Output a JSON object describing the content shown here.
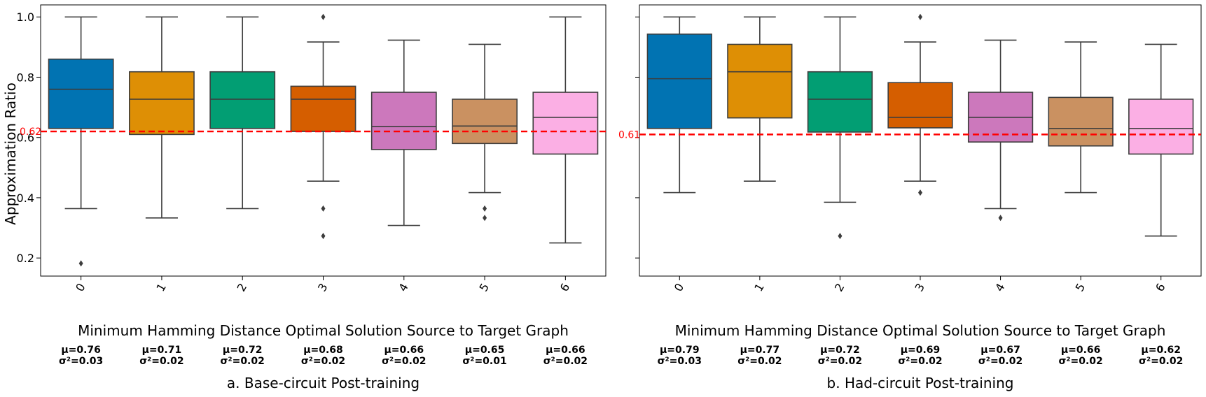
{
  "shared": {
    "ylabel": "Approximation Ratio",
    "xlabel": "Minimum Hamming Distance Optimal Solution Source to Target Graph",
    "yticks": [
      0.2,
      0.4,
      0.6,
      0.8,
      1.0
    ],
    "ytick_labels": [
      "0.2",
      "0.4",
      "0.6",
      "0.8",
      "1.0"
    ],
    "ylim": [
      0.14,
      1.04
    ],
    "palette": [
      "#0173b2",
      "#de8f05",
      "#029e73",
      "#d55e00",
      "#cc78bc",
      "#ca9161",
      "#fbafe4"
    ]
  },
  "chart_data": [
    {
      "type": "box",
      "caption": "a. Base-circuit Post-training",
      "categories": [
        "0",
        "1",
        "2",
        "3",
        "4",
        "5",
        "6"
      ],
      "reference_line": {
        "value": 0.62,
        "label": "0.62",
        "color": "#ff0000"
      },
      "boxes": [
        {
          "q1": 0.63,
          "median": 0.76,
          "q3": 0.86,
          "whislo": 0.364,
          "whishi": 1.0,
          "fliers": [
            0.182
          ]
        },
        {
          "q1": 0.61,
          "median": 0.727,
          "q3": 0.818,
          "whislo": 0.333,
          "whishi": 1.0,
          "fliers": []
        },
        {
          "q1": 0.63,
          "median": 0.727,
          "q3": 0.818,
          "whislo": 0.364,
          "whishi": 1.0,
          "fliers": []
        },
        {
          "q1": 0.62,
          "median": 0.727,
          "q3": 0.77,
          "whislo": 0.455,
          "whishi": 0.917,
          "fliers": [
            1.0,
            0.364,
            0.273
          ]
        },
        {
          "q1": 0.56,
          "median": 0.636,
          "q3": 0.75,
          "whislo": 0.308,
          "whishi": 0.923,
          "fliers": []
        },
        {
          "q1": 0.58,
          "median": 0.638,
          "q3": 0.727,
          "whislo": 0.417,
          "whishi": 0.909,
          "fliers": [
            0.364,
            0.333
          ]
        },
        {
          "q1": 0.545,
          "median": 0.667,
          "q3": 0.75,
          "whislo": 0.25,
          "whishi": 1.0,
          "fliers": []
        }
      ],
      "stats": [
        {
          "mu": "μ=0.76",
          "var": "σ²=0.03"
        },
        {
          "mu": "μ=0.71",
          "var": "σ²=0.02"
        },
        {
          "mu": "μ=0.72",
          "var": "σ²=0.02"
        },
        {
          "mu": "μ=0.68",
          "var": "σ²=0.02"
        },
        {
          "mu": "μ=0.66",
          "var": "σ²=0.02"
        },
        {
          "mu": "μ=0.65",
          "var": "σ²=0.01"
        },
        {
          "mu": "μ=0.66",
          "var": "σ²=0.02"
        }
      ],
      "show_ytick_labels": true
    },
    {
      "type": "box",
      "caption": "b. Had-circuit Post-training",
      "categories": [
        "0",
        "1",
        "2",
        "3",
        "4",
        "5",
        "6"
      ],
      "reference_line": {
        "value": 0.61,
        "label": "0.61",
        "color": "#ff0000"
      },
      "boxes": [
        {
          "q1": 0.63,
          "median": 0.795,
          "q3": 0.943,
          "whislo": 0.417,
          "whishi": 1.0,
          "fliers": []
        },
        {
          "q1": 0.665,
          "median": 0.818,
          "q3": 0.909,
          "whislo": 0.455,
          "whishi": 1.0,
          "fliers": []
        },
        {
          "q1": 0.618,
          "median": 0.727,
          "q3": 0.818,
          "whislo": 0.385,
          "whishi": 1.0,
          "fliers": [
            0.273
          ]
        },
        {
          "q1": 0.632,
          "median": 0.667,
          "q3": 0.782,
          "whislo": 0.455,
          "whishi": 0.917,
          "fliers": [
            1.0,
            0.417
          ]
        },
        {
          "q1": 0.585,
          "median": 0.667,
          "q3": 0.75,
          "whislo": 0.364,
          "whishi": 0.923,
          "fliers": [
            0.333
          ]
        },
        {
          "q1": 0.572,
          "median": 0.63,
          "q3": 0.733,
          "whislo": 0.417,
          "whishi": 0.917,
          "fliers": []
        },
        {
          "q1": 0.545,
          "median": 0.63,
          "q3": 0.727,
          "whislo": 0.273,
          "whishi": 0.909,
          "fliers": []
        }
      ],
      "stats": [
        {
          "mu": "μ=0.79",
          "var": "σ²=0.03"
        },
        {
          "mu": "μ=0.77",
          "var": "σ²=0.02"
        },
        {
          "mu": "μ=0.72",
          "var": "σ²=0.02"
        },
        {
          "mu": "μ=0.69",
          "var": "σ²=0.02"
        },
        {
          "mu": "μ=0.67",
          "var": "σ²=0.02"
        },
        {
          "mu": "μ=0.66",
          "var": "σ²=0.02"
        },
        {
          "mu": "μ=0.62",
          "var": "σ²=0.02"
        }
      ],
      "show_ytick_labels": false
    }
  ]
}
